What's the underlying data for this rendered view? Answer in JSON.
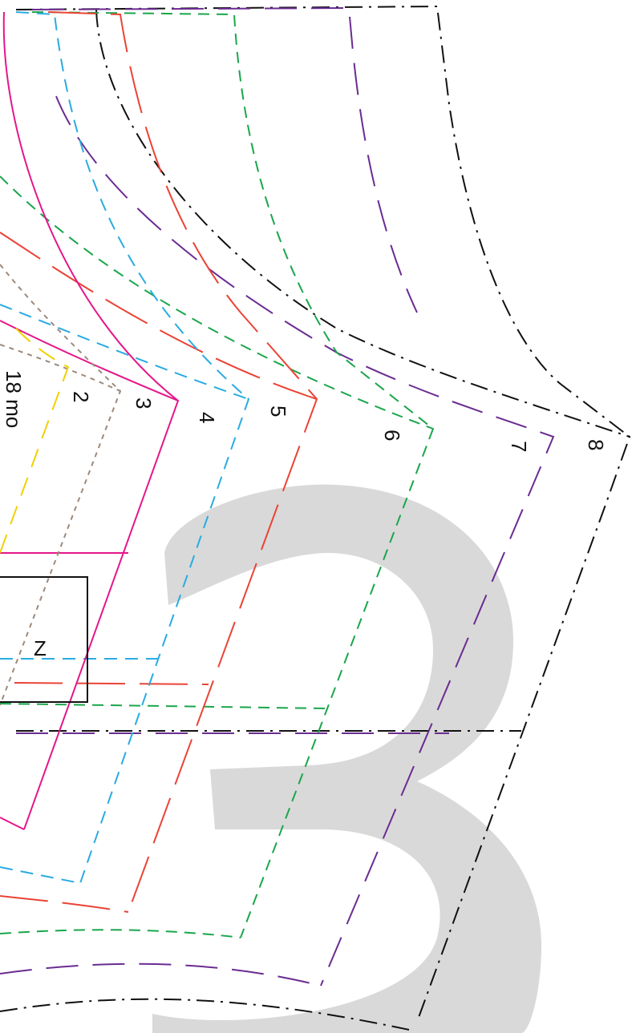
{
  "watermark": {
    "text": "3",
    "color": "#d9d9d9"
  },
  "size_labels": {
    "s18mo": "18 mo",
    "s2": "2",
    "s3": "3",
    "s4": "4",
    "s5": "5",
    "s6": "6",
    "s7": "7",
    "s8": "8"
  },
  "box_label": "Z",
  "colors": {
    "s18mo": "#f2d000",
    "s2": "#9c8a7d",
    "s3": "#e5168b",
    "s4": "#29abe2",
    "s5": "#ea4335",
    "s6": "#1aa64b",
    "s7": "#6a2c91",
    "s8": "#111111",
    "box": "#111111"
  }
}
